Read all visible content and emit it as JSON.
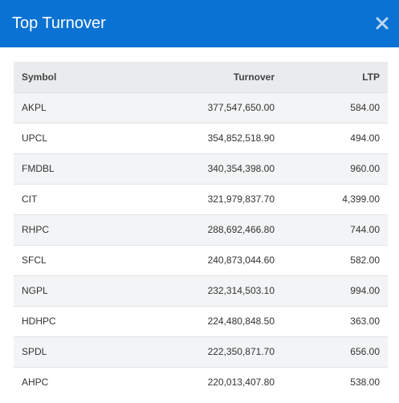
{
  "modal": {
    "title": "Top Turnover",
    "close_icon": "close-icon"
  },
  "table": {
    "headers": {
      "symbol": "Symbol",
      "turnover": "Turnover",
      "ltp": "LTP"
    },
    "rows": [
      {
        "symbol": "AKPL",
        "turnover": "377,547,650.00",
        "ltp": "584.00"
      },
      {
        "symbol": "UPCL",
        "turnover": "354,852,518.90",
        "ltp": "494.00"
      },
      {
        "symbol": "FMDBL",
        "turnover": "340,354,398.00",
        "ltp": "960.00"
      },
      {
        "symbol": "CIT",
        "turnover": "321,979,837.70",
        "ltp": "4,399.00"
      },
      {
        "symbol": "RHPC",
        "turnover": "288,692,466.80",
        "ltp": "744.00"
      },
      {
        "symbol": "SFCL",
        "turnover": "240,873,044.60",
        "ltp": "582.00"
      },
      {
        "symbol": "NGPL",
        "turnover": "232,314,503.10",
        "ltp": "994.00"
      },
      {
        "symbol": "HDHPC",
        "turnover": "224,480,848.50",
        "ltp": "363.00"
      },
      {
        "symbol": "SPDL",
        "turnover": "222,350,871.70",
        "ltp": "656.00"
      },
      {
        "symbol": "AHPC",
        "turnover": "220,013,407.80",
        "ltp": "538.00"
      }
    ]
  },
  "colors": {
    "header_bg": "#0a72d2",
    "title_text": "#ffffff",
    "table_header_bg": "#e9ebed",
    "row_alt_bg": "#f3f4f5",
    "row_bg": "#ffffff"
  }
}
